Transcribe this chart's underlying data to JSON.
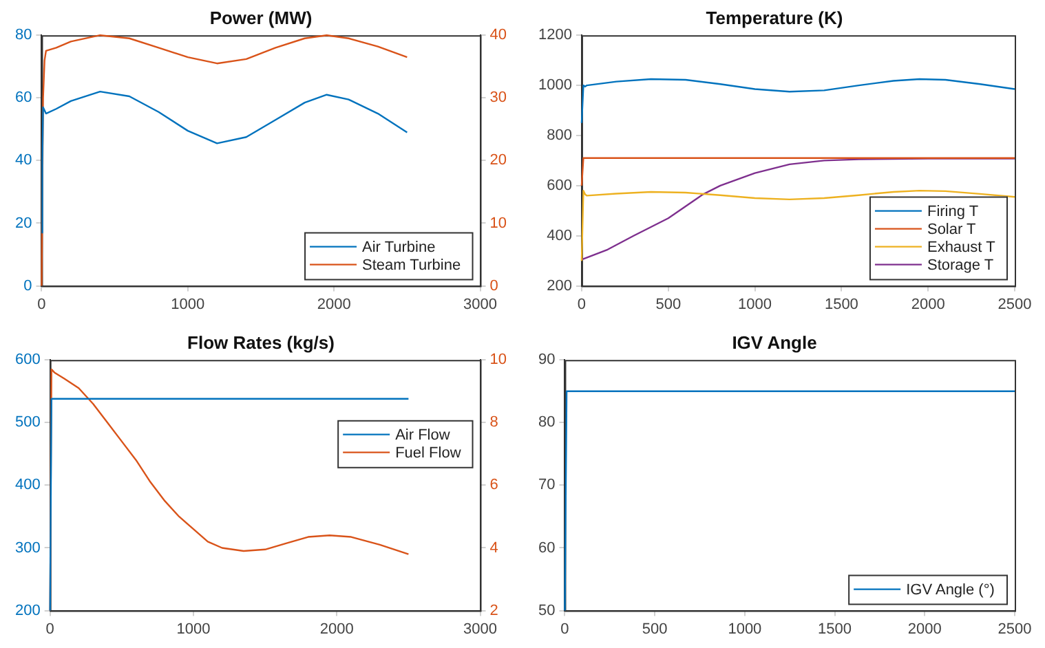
{
  "chart_data": [
    {
      "type": "line",
      "title": "Power (MW)",
      "xlim": [
        0,
        3000
      ],
      "xticks": [
        0,
        1000,
        2000,
        3000
      ],
      "ylim": [
        0,
        80
      ],
      "yticks": [
        0,
        20,
        40,
        60,
        80
      ],
      "y2lim": [
        0,
        40
      ],
      "y2ticks": [
        0,
        10,
        20,
        30,
        40
      ],
      "grid": false,
      "legend": "bottom right",
      "marker": "none",
      "line_style": "solid",
      "series": [
        {
          "name": "Air Turbine",
          "color": "#0072bd",
          "x": [
            0,
            5,
            10,
            20,
            30,
            100,
            200,
            400,
            600,
            800,
            1000,
            1200,
            1400,
            1600,
            1800,
            1950,
            2100,
            2300,
            2500
          ],
          "values": [
            17,
            40,
            57,
            56,
            55,
            56.5,
            59,
            62,
            60.5,
            55.5,
            49.5,
            45.5,
            47.5,
            53,
            58.5,
            61,
            59.5,
            55,
            49
          ]
        },
        {
          "name": "Steam Turbine",
          "color": "#d95319",
          "axis": "y2",
          "x": [
            0,
            10,
            20,
            30,
            100,
            200,
            400,
            600,
            800,
            1000,
            1200,
            1400,
            1600,
            1800,
            1950,
            2100,
            2300,
            2500
          ],
          "values": [
            0,
            30,
            36,
            37.5,
            38,
            39,
            40,
            39.5,
            38,
            36.5,
            35.5,
            36.2,
            38,
            39.5,
            40,
            39.5,
            38.2,
            36.5
          ]
        }
      ]
    },
    {
      "type": "line",
      "title": "Temperature (K)",
      "xlim": [
        0,
        2500
      ],
      "xticks": [
        0,
        500,
        1000,
        1500,
        2000,
        2500
      ],
      "ylim": [
        200,
        1200
      ],
      "yticks": [
        200,
        400,
        600,
        800,
        1000,
        1200
      ],
      "grid": false,
      "legend": "bottom right",
      "marker": "none",
      "line_style": "solid",
      "series": [
        {
          "name": "Firing T",
          "color": "#0072bd",
          "x": [
            0,
            10,
            20,
            30,
            200,
            400,
            600,
            800,
            1000,
            1200,
            1400,
            1600,
            1800,
            1950,
            2100,
            2300,
            2500
          ],
          "values": [
            850,
            1000,
            995,
            1000,
            1015,
            1025,
            1022,
            1005,
            985,
            975,
            980,
            1000,
            1018,
            1025,
            1022,
            1005,
            985
          ]
        },
        {
          "name": "Solar T",
          "color": "#d95319",
          "x": [
            0,
            10,
            20,
            2500
          ],
          "values": [
            600,
            710,
            710,
            710
          ]
        },
        {
          "name": "Exhaust T",
          "color": "#edb120",
          "x": [
            0,
            10,
            20,
            30,
            200,
            400,
            600,
            800,
            1000,
            1200,
            1400,
            1600,
            1800,
            1950,
            2100,
            2300,
            2500
          ],
          "values": [
            300,
            580,
            565,
            560,
            568,
            575,
            572,
            562,
            550,
            545,
            550,
            562,
            575,
            580,
            578,
            567,
            555
          ]
        },
        {
          "name": "Storage T",
          "color": "#7e2f8e",
          "x": [
            0,
            150,
            300,
            500,
            700,
            800,
            1000,
            1200,
            1400,
            1600,
            2000,
            2500
          ],
          "values": [
            305,
            345,
            400,
            470,
            565,
            600,
            650,
            685,
            700,
            705,
            708,
            708
          ]
        }
      ]
    },
    {
      "type": "line",
      "title": "Flow Rates (kg/s)",
      "xlim": [
        0,
        3000
      ],
      "xticks": [
        0,
        1000,
        2000,
        3000
      ],
      "ylim": [
        200,
        600
      ],
      "yticks": [
        200,
        300,
        400,
        500,
        600
      ],
      "y2lim": [
        2,
        10
      ],
      "y2ticks": [
        2,
        4,
        6,
        8,
        10
      ],
      "grid": false,
      "legend": "top right",
      "marker": "none",
      "line_style": "solid",
      "series": [
        {
          "name": "Air Flow",
          "color": "#0072bd",
          "x": [
            0,
            10,
            20,
            2500
          ],
          "values": [
            200,
            538,
            538,
            538
          ]
        },
        {
          "name": "Fuel Flow",
          "color": "#d95319",
          "axis": "y2",
          "x": [
            0,
            10,
            30,
            100,
            200,
            300,
            400,
            500,
            600,
            700,
            800,
            900,
            1000,
            1100,
            1200,
            1350,
            1500,
            1650,
            1800,
            1950,
            2100,
            2300,
            2500
          ],
          "values": [
            2,
            9.7,
            9.6,
            9.4,
            9.1,
            8.6,
            8.0,
            7.4,
            6.8,
            6.1,
            5.5,
            5.0,
            4.6,
            4.2,
            4.0,
            3.9,
            3.95,
            4.15,
            4.35,
            4.4,
            4.35,
            4.1,
            3.8
          ]
        }
      ]
    },
    {
      "type": "line",
      "title": "IGV Angle",
      "xlim": [
        0,
        2500
      ],
      "xticks": [
        0,
        500,
        1000,
        1500,
        2000,
        2500
      ],
      "ylim": [
        50,
        90
      ],
      "yticks": [
        50,
        60,
        70,
        80,
        90
      ],
      "grid": false,
      "legend": "bottom right",
      "marker": "none",
      "line_style": "solid",
      "series": [
        {
          "name": "IGV Angle (°)",
          "color": "#0072bd",
          "x": [
            0,
            10,
            20,
            2500
          ],
          "values": [
            50,
            85,
            85,
            85
          ]
        }
      ]
    }
  ]
}
